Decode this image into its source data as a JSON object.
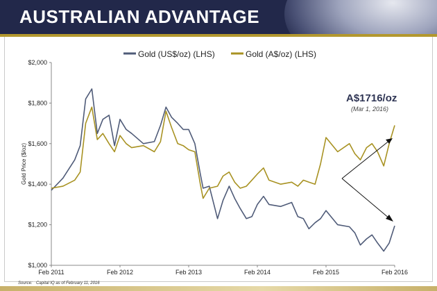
{
  "header": {
    "title": "AUSTRALIAN ADVANTAGE"
  },
  "source": {
    "label": "Source:",
    "text": "Capital IQ as of February 11, 2016"
  },
  "annotation": {
    "price": "A$1716/oz",
    "date": "(Mar 1, 2016)"
  },
  "colors": {
    "usd": "#4f5b78",
    "aud": "#a89222",
    "header": "#22284a",
    "accent": "#b3982e"
  },
  "chart_data": {
    "type": "line",
    "title": "",
    "xlabel": "",
    "ylabel": "Gold Price ($/oz)",
    "ylim": [
      1000,
      2000
    ],
    "yticks": [
      "$1,000",
      "$1,200",
      "$1,400",
      "$1,600",
      "$1,800",
      "$2,000"
    ],
    "xticks": [
      "Feb 2011",
      "Feb 2012",
      "Feb 2013",
      "Feb 2014",
      "Feb 2015",
      "Feb 2016"
    ],
    "legend_position": "top-center",
    "series": [
      {
        "name": "Gold (US$/oz) (LHS)",
        "x": [
          2011.08,
          2011.25,
          2011.42,
          2011.5,
          2011.58,
          2011.67,
          2011.75,
          2011.83,
          2011.92,
          2012.0,
          2012.08,
          2012.17,
          2012.25,
          2012.42,
          2012.58,
          2012.67,
          2012.75,
          2012.83,
          2012.92,
          2013.0,
          2013.08,
          2013.17,
          2013.25,
          2013.29,
          2013.38,
          2013.5,
          2013.58,
          2013.67,
          2013.75,
          2013.83,
          2013.92,
          2014.0,
          2014.08,
          2014.17,
          2014.25,
          2014.42,
          2014.58,
          2014.67,
          2014.75,
          2014.83,
          2014.92,
          2015.0,
          2015.08,
          2015.25,
          2015.42,
          2015.5,
          2015.58,
          2015.67,
          2015.75,
          2015.83,
          2015.92,
          2016.0,
          2016.08
        ],
        "values": [
          1370,
          1430,
          1520,
          1590,
          1820,
          1870,
          1650,
          1720,
          1740,
          1590,
          1720,
          1670,
          1650,
          1600,
          1610,
          1690,
          1780,
          1730,
          1700,
          1670,
          1670,
          1600,
          1450,
          1380,
          1390,
          1230,
          1320,
          1390,
          1330,
          1280,
          1230,
          1240,
          1300,
          1340,
          1300,
          1290,
          1310,
          1240,
          1230,
          1180,
          1210,
          1230,
          1270,
          1200,
          1190,
          1160,
          1100,
          1130,
          1150,
          1110,
          1070,
          1110,
          1195
        ]
      },
      {
        "name": "Gold (A$/oz) (LHS)",
        "x": [
          2011.08,
          2011.25,
          2011.42,
          2011.5,
          2011.58,
          2011.67,
          2011.75,
          2011.83,
          2011.92,
          2012.0,
          2012.08,
          2012.17,
          2012.25,
          2012.42,
          2012.58,
          2012.67,
          2012.75,
          2012.83,
          2012.92,
          2013.0,
          2013.08,
          2013.17,
          2013.25,
          2013.29,
          2013.38,
          2013.5,
          2013.58,
          2013.67,
          2013.75,
          2013.83,
          2013.92,
          2014.0,
          2014.08,
          2014.17,
          2014.25,
          2014.42,
          2014.58,
          2014.67,
          2014.75,
          2014.83,
          2014.92,
          2015.0,
          2015.08,
          2015.25,
          2015.42,
          2015.5,
          2015.58,
          2015.67,
          2015.75,
          2015.83,
          2015.92,
          2016.0,
          2016.08
        ],
        "values": [
          1380,
          1390,
          1420,
          1460,
          1700,
          1780,
          1620,
          1650,
          1600,
          1560,
          1640,
          1600,
          1580,
          1590,
          1560,
          1610,
          1760,
          1680,
          1600,
          1590,
          1570,
          1560,
          1400,
          1330,
          1380,
          1390,
          1440,
          1460,
          1410,
          1380,
          1390,
          1420,
          1450,
          1480,
          1420,
          1400,
          1410,
          1390,
          1420,
          1410,
          1400,
          1500,
          1630,
          1560,
          1600,
          1550,
          1520,
          1580,
          1600,
          1560,
          1490,
          1600,
          1690
        ]
      }
    ]
  }
}
